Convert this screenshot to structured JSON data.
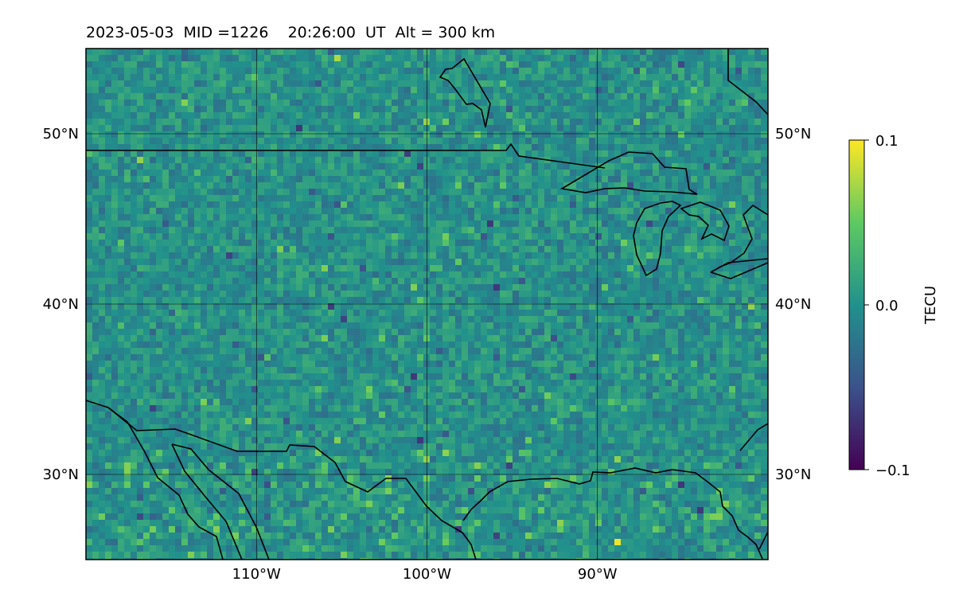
{
  "title": "2023-05-03  MID =1226    20:26:00  UT  Alt = 300 km",
  "map": {
    "lon_range": [
      -120,
      -80
    ],
    "lat_range": [
      25,
      55
    ],
    "lon_ticks": [
      {
        "value": -110,
        "label": "110°W"
      },
      {
        "value": -100,
        "label": "100°W"
      },
      {
        "value": -90,
        "label": "90°W"
      }
    ],
    "lat_ticks": [
      {
        "value": 30,
        "label": "30°N"
      },
      {
        "value": 40,
        "label": "40°N"
      },
      {
        "value": 50,
        "label": "50°N"
      }
    ],
    "gridlines": true,
    "colormap": "viridis",
    "field": "TEC perturbation map"
  },
  "colorbar": {
    "label": "TECU",
    "min": -0.1,
    "max": 0.1,
    "ticks": [
      {
        "value": 0.1,
        "label": "0.1"
      },
      {
        "value": 0.0,
        "label": "0.0"
      },
      {
        "value": -0.1,
        "label": "−0.1"
      }
    ],
    "colors": [
      "#440154",
      "#3b528b",
      "#21918c",
      "#5ec962",
      "#fde725"
    ]
  }
}
